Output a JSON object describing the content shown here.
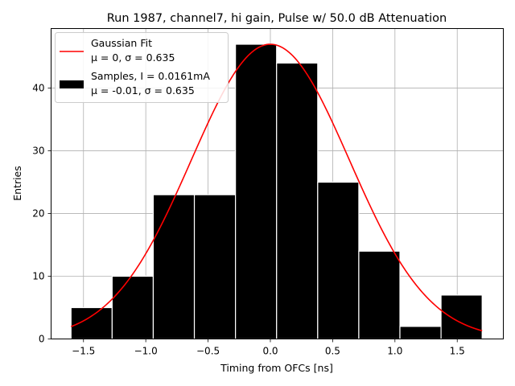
{
  "chart_data": {
    "type": "bar",
    "title": "Run 1987, channel7, hi gain, Pulse w/ 50.0 dB Attenuation",
    "xlabel": "Timing from OFCs [ns]",
    "ylabel": "Entries",
    "xlim": [
      -1.76,
      1.87
    ],
    "ylim": [
      0,
      49.5
    ],
    "xticks": [
      -1.5,
      -1.0,
      -0.5,
      0.0,
      0.5,
      1.0,
      1.5
    ],
    "xtick_labels": [
      "−1.5",
      "−1.0",
      "−0.5",
      "0.0",
      "0.5",
      "1.0",
      "1.5"
    ],
    "yticks": [
      0,
      10,
      20,
      30,
      40
    ],
    "ytick_labels": [
      "0",
      "10",
      "20",
      "30",
      "40"
    ],
    "grid": true,
    "legend_position": "upper-left",
    "histogram": {
      "bin_edges": [
        -1.6,
        -1.27,
        -0.94,
        -0.61,
        -0.28,
        0.05,
        0.38,
        0.71,
        1.04,
        1.37,
        1.7
      ],
      "counts": [
        5,
        10,
        23,
        23,
        47,
        44,
        25,
        14,
        2,
        7
      ],
      "color": "#000000",
      "edgecolor": "#ffffff"
    },
    "fit": {
      "type": "gaussian",
      "mu": 0,
      "sigma": 0.635,
      "amplitude": 47,
      "x_range": [
        -1.6,
        1.7
      ],
      "color": "#ff0000"
    },
    "legend": [
      {
        "line1": "Gaussian Fit",
        "line2": "μ = 0, σ = 0.635",
        "color": "#ff0000",
        "kind": "line"
      },
      {
        "line1": "Samples, I = 0.0161mA",
        "line2": "μ = -0.01, σ = 0.635",
        "color": "#000000",
        "kind": "patch"
      }
    ]
  }
}
